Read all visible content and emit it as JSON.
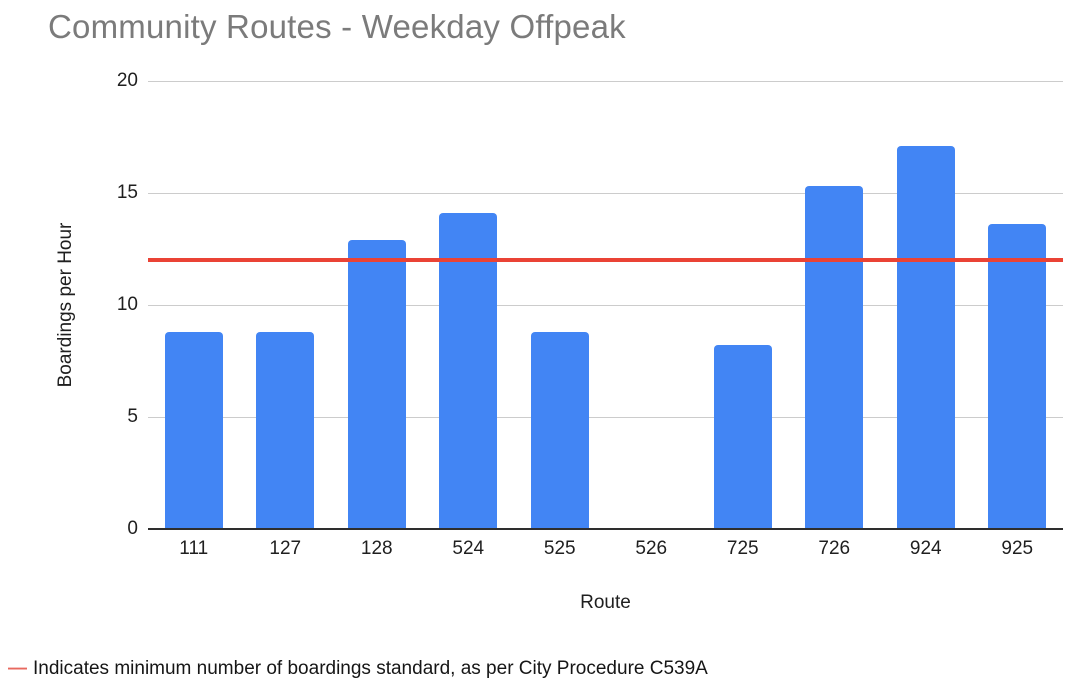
{
  "title": "Community Routes - Weekday Offpeak",
  "colors": {
    "bar": "#4285f4",
    "reference_line": "#ea4335",
    "footnote_marker": "#e8695f",
    "title_text": "#7b7b7b",
    "gridline": "#cccccc",
    "axis_line": "#2e2e2e"
  },
  "footnote": {
    "marker": "—",
    "text": "Indicates minimum number of boardings standard, as per City Procedure C539A"
  },
  "chart_data": {
    "type": "bar",
    "title": "Community Routes - Weekday Offpeak",
    "xlabel": "Route",
    "ylabel": "Boardings per Hour",
    "categories": [
      "111",
      "127",
      "128",
      "524",
      "525",
      "526",
      "725",
      "726",
      "924",
      "925"
    ],
    "values": [
      8.8,
      8.8,
      12.9,
      14.1,
      8.8,
      0,
      8.2,
      15.3,
      17.1,
      13.6
    ],
    "ylim": [
      0,
      20
    ],
    "yticks": [
      0,
      5,
      10,
      15,
      20
    ],
    "grid": true,
    "legend_position": "none",
    "bar_color": "#4285f4",
    "reference_line": {
      "value": 12,
      "color": "#ea4335",
      "meaning": "Indicates minimum number of boardings standard, as per City Procedure C539A"
    }
  }
}
